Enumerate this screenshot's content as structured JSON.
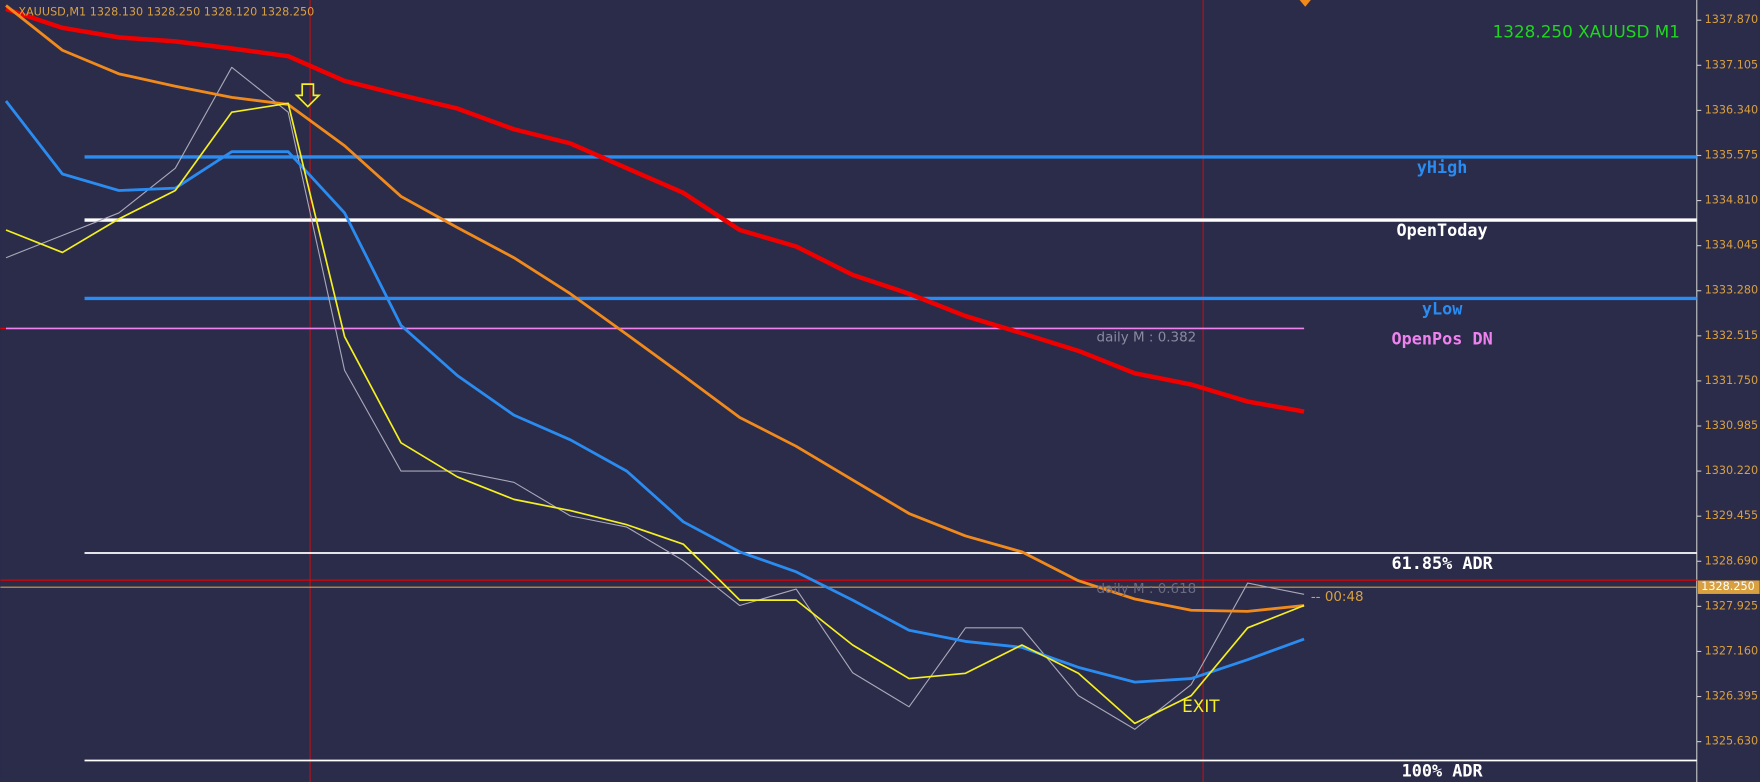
{
  "chart_data": {
    "type": "line",
    "info": "XAUUSD,M1  1328.130 1328.250 1328.120 1328.250",
    "title": "1328.250 XAUUSD M1",
    "categories": [
      null,
      null,
      null,
      null,
      null,
      null,
      null,
      null,
      null,
      null,
      null,
      null,
      null,
      null,
      null,
      null,
      null,
      null,
      null,
      null,
      null,
      null,
      null,
      null
    ],
    "series": [
      {
        "color": "#a8a8b8",
        "values": [
          1333.84,
          1334.22,
          1334.6,
          1335.36,
          1337.07,
          1336.31,
          1331.93,
          1330.22,
          1330.22,
          1330.03,
          1329.46,
          1329.27,
          1328.7,
          1327.94,
          1328.22,
          1326.8,
          1326.22,
          1327.56,
          1327.56,
          1326.41,
          1325.84,
          1326.6,
          1328.32,
          1328.13
        ]
      },
      {
        "color": "#ee0000",
        "values": [
          1338.06,
          1337.74,
          1337.58,
          1337.51,
          1337.39,
          1337.26,
          1336.84,
          1336.6,
          1336.37,
          1336.02,
          1335.78,
          1335.36,
          1334.94,
          1334.31,
          1334.03,
          1333.55,
          1333.23,
          1332.85,
          1332.56,
          1332.26,
          1331.88,
          1331.69,
          1331.4,
          1331.23
        ]
      },
      {
        "color": "#f08a1c",
        "values": [
          1338.12,
          1337.36,
          1336.96,
          1336.75,
          1336.56,
          1336.44,
          1335.74,
          1334.88,
          1334.35,
          1333.84,
          1333.23,
          1332.54,
          1331.84,
          1331.13,
          1330.64,
          1330.07,
          1329.5,
          1329.12,
          1328.85,
          1328.36,
          1328.05,
          1327.86,
          1327.84,
          1327.94
        ]
      },
      {
        "color": "#2a8cf0",
        "values": [
          1336.5,
          1335.26,
          1334.98,
          1335.02,
          1335.64,
          1335.64,
          1334.6,
          1332.69,
          1331.84,
          1331.17,
          1330.75,
          1330.22,
          1329.36,
          1328.85,
          1328.51,
          1328.03,
          1327.52,
          1327.33,
          1327.23,
          1326.89,
          1326.64,
          1326.7,
          1327.02,
          1327.37
        ]
      },
      {
        "color": "#f5f020",
        "values": [
          1334.31,
          1333.93,
          1334.5,
          1334.98,
          1336.31,
          1336.46,
          1332.5,
          1330.7,
          1330.12,
          1329.74,
          1329.55,
          1329.31,
          1328.98,
          1328.03,
          1328.03,
          1327.27,
          1326.7,
          1326.79,
          1327.27,
          1326.79,
          1325.94,
          1326.41,
          1327.56,
          1327.94
        ]
      }
    ],
    "levels": [
      {
        "name": "yHigh",
        "value": 1335.55,
        "color": "#2a8cf0"
      },
      {
        "name": "OpenToday",
        "value": 1334.48,
        "color": "#ffffff"
      },
      {
        "name": "yLow",
        "value": 1333.15,
        "color": "#2a8cf0"
      },
      {
        "name": "OpenPos DN",
        "value": 1332.64,
        "color": "#ee82ee"
      },
      {
        "name": "61.85% ADR",
        "value": 1328.83,
        "color": "#ffffff"
      },
      {
        "name": "100% ADR",
        "value": 1325.31,
        "color": "#ffffff"
      }
    ],
    "marker_lines": [
      {
        "value": 1332.64,
        "color": "#e00000"
      },
      {
        "value": 1328.37,
        "color": "#e00000"
      }
    ],
    "current_price": {
      "value": 1328.25,
      "label": "1328.250",
      "color": "#d8a040"
    },
    "annotations": [
      "daily M : 0.382",
      "daily M : 0.618",
      "EXIT",
      "-- 00:48"
    ],
    "ylim": [
      1324.945,
      1338.213
    ],
    "yticks": [
      {
        "value": 1337.87,
        "label": "1337.870"
      },
      1337.105,
      {
        "value": 1336.34,
        "label": "1336.340"
      },
      {
        "value": 1335.575,
        "label": "1335.575"
      },
      {
        "value": 1334.81,
        "label": "1334.810"
      },
      1334.045,
      {
        "value": 1333.28,
        "label": "1333.280"
      },
      1332.515,
      {
        "value": 1331.75,
        "label": "1331.750"
      },
      1330.985,
      {
        "value": 1330.22,
        "label": "1330.220"
      },
      {
        "value": 1329.455,
        "label": "1329.455"
      },
      {
        "value": 1328.69,
        "label": "1328.690"
      },
      1327.925,
      {
        "value": 1327.16,
        "label": "1327.160"
      },
      1326.395,
      {
        "value": 1325.63,
        "label": "1325.630"
      }
    ]
  }
}
